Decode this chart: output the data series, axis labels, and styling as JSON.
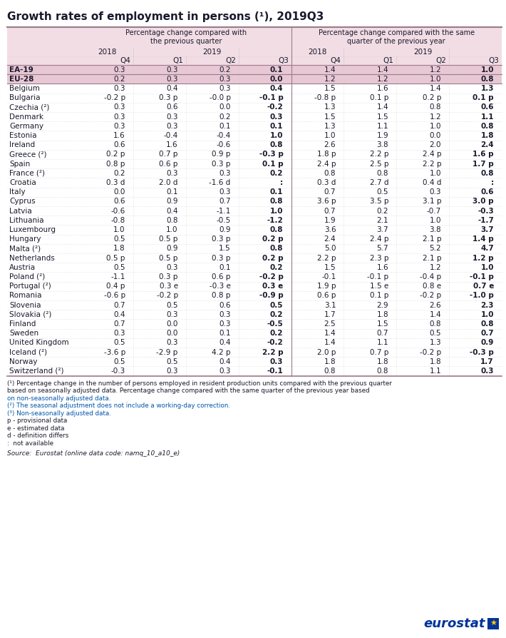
{
  "title": "Growth rates of employment in persons (¹), 2019Q3",
  "col_header_1": "Percentage change compared with\nthe previous quarter",
  "col_header_2": "Percentage change compared with the same\nquarter of the previous year",
  "quarters": [
    "Q4",
    "Q1",
    "Q2",
    "Q3",
    "Q4",
    "Q1",
    "Q2",
    "Q3"
  ],
  "rows": [
    [
      "EA-19",
      "0.3",
      "0.3",
      "0.2",
      "0.1",
      "1.4",
      "1.4",
      "1.2",
      "1.0",
      true
    ],
    [
      "EU-28",
      "0.2",
      "0.3",
      "0.3",
      "0.0",
      "1.2",
      "1.2",
      "1.0",
      "0.8",
      true
    ],
    [
      "Belgium",
      "0.3",
      "0.4",
      "0.3",
      "0.4",
      "1.5",
      "1.6",
      "1.4",
      "1.3",
      false
    ],
    [
      "Bulgaria",
      "-0.2 p",
      "0.3 p",
      "-0.0 p",
      "-0.1 p",
      "-0.8 p",
      "0.1 p",
      "0.2 p",
      "0.1 p",
      false
    ],
    [
      "Czechia (²)",
      "0.3",
      "0.6",
      "0.0",
      "-0.2",
      "1.3",
      "1.4",
      "0.8",
      "0.6",
      false
    ],
    [
      "Denmark",
      "0.3",
      "0.3",
      "0.2",
      "0.3",
      "1.5",
      "1.5",
      "1.2",
      "1.1",
      false
    ],
    [
      "Germany",
      "0.3",
      "0.3",
      "0.1",
      "0.1",
      "1.3",
      "1.1",
      "1.0",
      "0.8",
      false
    ],
    [
      "Estonia",
      "1.6",
      "-0.4",
      "-0.4",
      "1.0",
      "1.0",
      "1.9",
      "0.0",
      "1.8",
      false
    ],
    [
      "Ireland",
      "0.6",
      "1.6",
      "-0.6",
      "0.8",
      "2.6",
      "3.8",
      "2.0",
      "2.4",
      false
    ],
    [
      "Greece (²)",
      "0.2 p",
      "0.7 p",
      "0.9 p",
      "-0.3 p",
      "1.8 p",
      "2.2 p",
      "2.4 p",
      "1.6 p",
      false
    ],
    [
      "Spain",
      "0.8 p",
      "0.6 p",
      "0.3 p",
      "0.1 p",
      "2.4 p",
      "2.5 p",
      "2.2 p",
      "1.7 p",
      false
    ],
    [
      "France (²)",
      "0.2",
      "0.3",
      "0.3",
      "0.2",
      "0.8",
      "0.8",
      "1.0",
      "0.8",
      false
    ],
    [
      "Croatia",
      "0.3 d",
      "2.0 d",
      "-1.6 d",
      ":",
      "0.3 d",
      "2.7 d",
      "0.4 d",
      ":",
      false
    ],
    [
      "Italy",
      "0.0",
      "0.1",
      "0.3",
      "0.1",
      "0.7",
      "0.5",
      "0.3",
      "0.6",
      false
    ],
    [
      "Cyprus",
      "0.6",
      "0.9",
      "0.7",
      "0.8",
      "3.6 p",
      "3.5 p",
      "3.1 p",
      "3.0 p",
      false
    ],
    [
      "Latvia",
      "-0.6",
      "0.4",
      "-1.1",
      "1.0",
      "0.7",
      "0.2",
      "-0.7",
      "-0.3",
      false
    ],
    [
      "Lithuania",
      "-0.8",
      "0.8",
      "-0.5",
      "-1.2",
      "1.9",
      "2.1",
      "1.0",
      "-1.7",
      false
    ],
    [
      "Luxembourg",
      "1.0",
      "1.0",
      "0.9",
      "0.8",
      "3.6",
      "3.7",
      "3.8",
      "3.7",
      false
    ],
    [
      "Hungary",
      "0.5",
      "0.5 p",
      "0.3 p",
      "0.2 p",
      "2.4",
      "2.4 p",
      "2.1 p",
      "1.4 p",
      false
    ],
    [
      "Malta (²)",
      "1.8",
      "0.9",
      "1.5",
      "0.8",
      "5.0",
      "5.7",
      "5.2",
      "4.7",
      false
    ],
    [
      "Netherlands",
      "0.5 p",
      "0.5 p",
      "0.3 p",
      "0.2 p",
      "2.2 p",
      "2.3 p",
      "2.1 p",
      "1.2 p",
      false
    ],
    [
      "Austria",
      "0.5",
      "0.3",
      "0.1",
      "0.2",
      "1.5",
      "1.6",
      "1.2",
      "1.0",
      false
    ],
    [
      "Poland (²)",
      "-1.1",
      "0.3 p",
      "0.6 p",
      "-0.2 p",
      "-0.1",
      "-0.1 p",
      "-0.4 p",
      "-0.1 p",
      false
    ],
    [
      "Portugal (²)",
      "0.4 p",
      "0.3 e",
      "-0.3 e",
      "0.3 e",
      "1.9 p",
      "1.5 e",
      "0.8 e",
      "0.7 e",
      false
    ],
    [
      "Romania",
      "-0.6 p",
      "-0.2 p",
      "0.8 p",
      "-0.9 p",
      "0.6 p",
      "0.1 p",
      "-0.2 p",
      "-1.0 p",
      false
    ],
    [
      "Slovenia",
      "0.7",
      "0.5",
      "0.6",
      "0.5",
      "3.1",
      "2.9",
      "2.6",
      "2.3",
      false
    ],
    [
      "Slovakia (²)",
      "0.4",
      "0.3",
      "0.3",
      "0.2",
      "1.7",
      "1.8",
      "1.4",
      "1.0",
      false
    ],
    [
      "Finland",
      "0.7",
      "0.0",
      "0.3",
      "-0.5",
      "2.5",
      "1.5",
      "0.8",
      "0.8",
      false
    ],
    [
      "Sweden",
      "0.3",
      "0.0",
      "0.1",
      "0.2",
      "1.4",
      "0.7",
      "0.5",
      "0.7",
      false
    ],
    [
      "United Kingdom",
      "0.5",
      "0.3",
      "0.4",
      "-0.2",
      "1.4",
      "1.1",
      "1.3",
      "0.9",
      false
    ],
    [
      "Iceland (²)",
      "-3.6 p",
      "-2.9 p",
      "4.2 p",
      "2.2 p",
      "2.0 p",
      "0.7 p",
      "-0.2 p",
      "-0.3 p",
      false
    ],
    [
      "Norway",
      "0.5",
      "0.5",
      "0.4",
      "0.3",
      "1.8",
      "1.8",
      "1.8",
      "1.7",
      false
    ],
    [
      "Switzerland (²)",
      "-0.3",
      "0.3",
      "0.3",
      "-0.1",
      "0.8",
      "0.8",
      "1.1",
      "0.3",
      false
    ]
  ],
  "footnotes": [
    [
      "(¹) Percentage change in the number of persons employed in resident production units compared with the previous quarter",
      "black"
    ],
    [
      "based on seasonally adjusted data. Percentage change compared with the same quarter of the previous year based",
      "black"
    ],
    [
      "on non-seasonally adjusted data.",
      "blue"
    ],
    [
      "(²) The seasonal adjustment does not include a working-day correction.",
      "blue"
    ],
    [
      "(³) Non-seasonally adjusted data.",
      "blue"
    ],
    [
      "p - provisional data",
      "black"
    ],
    [
      "e - estimated data",
      "black"
    ],
    [
      "d - definition differs",
      "black"
    ],
    [
      ":  not available",
      "black"
    ]
  ],
  "source_text": "Source:  Eurostat (online data code: namq_10_a10_e)",
  "bg_color_header": "#f2dde4",
  "bg_color_ea_eu": "#e8c8d4",
  "bg_color_white": "#ffffff",
  "text_color": "#1a1a2e",
  "line_color": "#9b7b8a",
  "divider_color": "#9b7b8a",
  "footnote_blue": "#0055aa"
}
